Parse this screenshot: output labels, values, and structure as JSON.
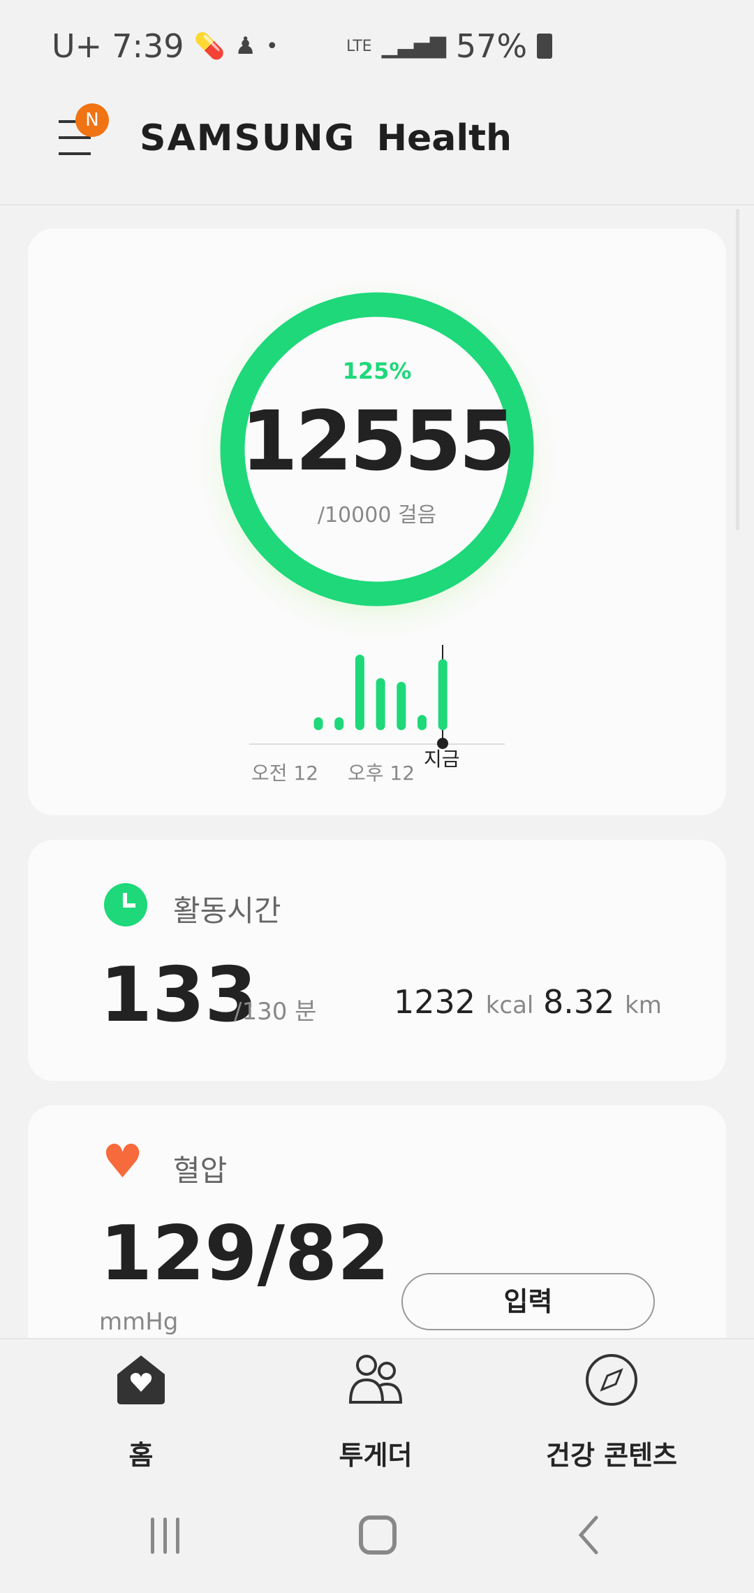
{
  "status_bar": {
    "carrier": "U+",
    "time": "7:39",
    "network": "LTE",
    "battery": "57%"
  },
  "header": {
    "brand": "SAMSUNG",
    "app": "Health",
    "badge": "N"
  },
  "steps": {
    "percent": "125%",
    "count": "12555",
    "goal": "/10000 걸음",
    "progress": 1.2555,
    "ring_color": "#1ed87a"
  },
  "chart_data": {
    "type": "bar",
    "categories": [
      "",
      "",
      "",
      "",
      "",
      "",
      ""
    ],
    "values": [
      0.17,
      0.17,
      1.0,
      0.69,
      0.64,
      0.2,
      0.94
    ],
    "x_labels": [
      "오전 12",
      "오후 12"
    ],
    "now_label": "지금",
    "color": "#1ed87a"
  },
  "activity": {
    "title": "활동시간",
    "value": "133",
    "goal": "/130 분",
    "kcal": "1232",
    "kcal_unit": "kcal",
    "distance": "8.32",
    "distance_unit": "km"
  },
  "blood_pressure": {
    "title": "혈압",
    "value": "129/82",
    "unit": "mmHg",
    "button": "입력"
  },
  "bottom_nav": {
    "items": [
      {
        "label": "홈"
      },
      {
        "label": "투게더"
      },
      {
        "label": "건강 콘텐츠"
      }
    ]
  }
}
